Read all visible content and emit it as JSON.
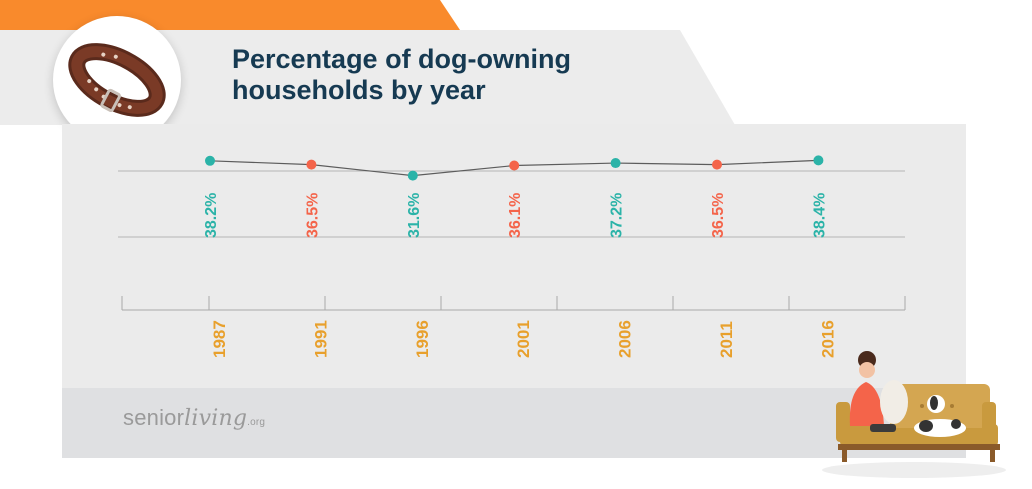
{
  "header": {
    "title_line1": "Percentage of dog-owning",
    "title_line2": "households by year"
  },
  "logo": {
    "part1": "senior",
    "part2": "living",
    "part3": ".org"
  },
  "colors": {
    "accent_orange": "#f98a2c",
    "title": "#163a52",
    "teal": "#2bb3a8",
    "red": "#f4644a",
    "year_label": "#e8a02c"
  },
  "icons": [
    "dog-collar-icon",
    "woman-with-dog-on-couch-illustration"
  ],
  "chart_data": {
    "type": "line",
    "title": "Percentage of dog-owning households by year",
    "xlabel": "",
    "ylabel": "",
    "categories": [
      "1987",
      "1991",
      "1996",
      "2001",
      "2006",
      "2011",
      "2016"
    ],
    "values": [
      38.2,
      36.5,
      31.6,
      36.1,
      37.2,
      36.5,
      38.4
    ],
    "value_labels": [
      "38.2%",
      "36.5%",
      "31.6%",
      "36.1%",
      "37.2%",
      "36.5%",
      "38.4%"
    ],
    "point_colors": [
      "teal",
      "red",
      "teal",
      "red",
      "teal",
      "red",
      "teal"
    ],
    "ylim": [
      0,
      45
    ],
    "grid": true,
    "legend": "none"
  }
}
